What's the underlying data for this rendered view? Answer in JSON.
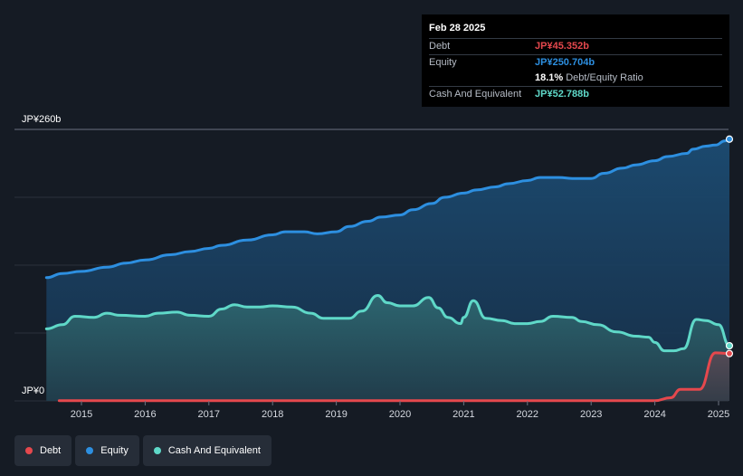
{
  "tooltip": {
    "date": "Feb 28 2025",
    "debt_label": "Debt",
    "debt_value": "JP¥45.352b",
    "equity_label": "Equity",
    "equity_value": "JP¥250.704b",
    "ratio_value": "18.1%",
    "ratio_label": "Debt/Equity Ratio",
    "cash_label": "Cash And Equivalent",
    "cash_value": "JP¥52.788b"
  },
  "legend": [
    {
      "label": "Debt",
      "color": "#e5484d"
    },
    {
      "label": "Equity",
      "color": "#2d8fe0"
    },
    {
      "label": "Cash And Equivalent",
      "color": "#5fd8c8"
    }
  ],
  "colors": {
    "debt": "#e5484d",
    "equity": "#2d8fe0",
    "cash": "#5fd8c8",
    "tooltip_debt": "#e5484d",
    "tooltip_equity": "#2d8fe0",
    "tooltip_cash": "#5fd8c8"
  },
  "chart_data": {
    "type": "area",
    "title": "",
    "ylabel_top": "JP¥260b",
    "ylabel_bottom": "JP¥0",
    "ylim": [
      0,
      260
    ],
    "xlim": [
      2014.45,
      2025.17
    ],
    "x_ticks": [
      "2015",
      "2016",
      "2017",
      "2018",
      "2019",
      "2020",
      "2021",
      "2022",
      "2023",
      "2024",
      "2025"
    ],
    "series": [
      {
        "name": "Equity",
        "points": [
          [
            2014.45,
            118
          ],
          [
            2014.7,
            122
          ],
          [
            2015.0,
            124
          ],
          [
            2015.4,
            128
          ],
          [
            2015.7,
            132
          ],
          [
            2016.0,
            135
          ],
          [
            2016.4,
            140
          ],
          [
            2016.7,
            143
          ],
          [
            2017.0,
            146
          ],
          [
            2017.2,
            149
          ],
          [
            2017.6,
            154
          ],
          [
            2018.0,
            159
          ],
          [
            2018.2,
            162
          ],
          [
            2018.5,
            162
          ],
          [
            2018.7,
            160
          ],
          [
            2019.0,
            162
          ],
          [
            2019.2,
            167
          ],
          [
            2019.5,
            172
          ],
          [
            2019.7,
            176
          ],
          [
            2020.0,
            178
          ],
          [
            2020.2,
            183
          ],
          [
            2020.5,
            189
          ],
          [
            2020.7,
            195
          ],
          [
            2021.0,
            199
          ],
          [
            2021.2,
            202
          ],
          [
            2021.5,
            205
          ],
          [
            2021.7,
            208
          ],
          [
            2022.0,
            211
          ],
          [
            2022.2,
            214
          ],
          [
            2022.5,
            214
          ],
          [
            2022.7,
            213
          ],
          [
            2023.0,
            213
          ],
          [
            2023.2,
            218
          ],
          [
            2023.5,
            223
          ],
          [
            2023.7,
            226
          ],
          [
            2024.0,
            230
          ],
          [
            2024.2,
            234
          ],
          [
            2024.5,
            237
          ],
          [
            2024.6,
            241
          ],
          [
            2024.8,
            244
          ],
          [
            2024.95,
            245
          ],
          [
            2025.1,
            249
          ],
          [
            2025.17,
            250.7
          ]
        ]
      },
      {
        "name": "Cash And Equivalent",
        "points": [
          [
            2014.45,
            69
          ],
          [
            2014.7,
            73
          ],
          [
            2014.9,
            81
          ],
          [
            2015.2,
            80
          ],
          [
            2015.4,
            84
          ],
          [
            2015.6,
            82
          ],
          [
            2016.0,
            81
          ],
          [
            2016.2,
            84
          ],
          [
            2016.5,
            85
          ],
          [
            2016.7,
            82
          ],
          [
            2017.0,
            81
          ],
          [
            2017.2,
            88
          ],
          [
            2017.4,
            92
          ],
          [
            2017.6,
            90
          ],
          [
            2017.8,
            90
          ],
          [
            2018.0,
            91
          ],
          [
            2018.3,
            90
          ],
          [
            2018.6,
            84
          ],
          [
            2018.8,
            79
          ],
          [
            2019.0,
            79
          ],
          [
            2019.2,
            79
          ],
          [
            2019.4,
            86
          ],
          [
            2019.65,
            101
          ],
          [
            2019.8,
            94
          ],
          [
            2020.0,
            91
          ],
          [
            2020.2,
            91
          ],
          [
            2020.45,
            99
          ],
          [
            2020.6,
            89
          ],
          [
            2020.75,
            80
          ],
          [
            2020.95,
            74
          ],
          [
            2021.0,
            80
          ],
          [
            2021.15,
            96
          ],
          [
            2021.35,
            79
          ],
          [
            2021.6,
            77
          ],
          [
            2021.8,
            74
          ],
          [
            2022.0,
            74
          ],
          [
            2022.2,
            76
          ],
          [
            2022.4,
            81
          ],
          [
            2022.7,
            80
          ],
          [
            2022.85,
            76
          ],
          [
            2023.1,
            73
          ],
          [
            2023.4,
            66
          ],
          [
            2023.7,
            62
          ],
          [
            2023.9,
            61
          ],
          [
            2024.0,
            56
          ],
          [
            2024.15,
            48
          ],
          [
            2024.3,
            48
          ],
          [
            2024.45,
            50
          ],
          [
            2024.65,
            78
          ],
          [
            2024.8,
            77
          ],
          [
            2025.0,
            73
          ],
          [
            2025.17,
            52.8
          ]
        ]
      },
      {
        "name": "Debt",
        "points": [
          [
            2014.65,
            0.3
          ],
          [
            2024.0,
            0.3
          ],
          [
            2024.25,
            3
          ],
          [
            2024.4,
            11
          ],
          [
            2024.7,
            11
          ],
          [
            2024.95,
            46
          ],
          [
            2025.17,
            45.35
          ]
        ]
      }
    ]
  }
}
